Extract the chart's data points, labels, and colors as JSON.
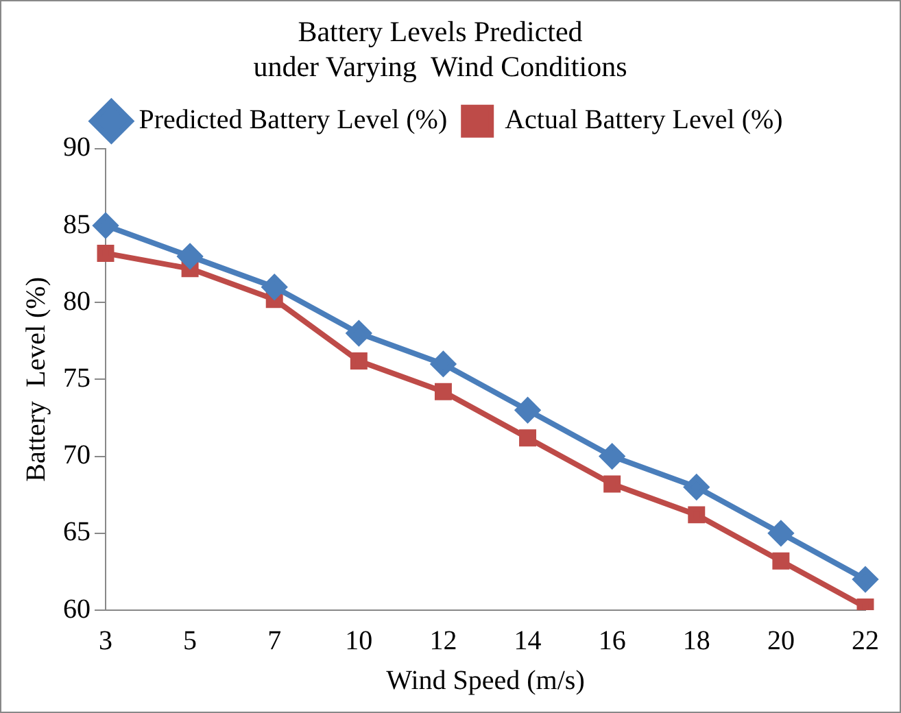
{
  "chart_data": {
    "type": "line",
    "title": [
      "Battery Levels Predicted",
      "under Varying  Wind Conditions"
    ],
    "xlabel": "Wind Speed (m/s)",
    "ylabel": "Battery  Level (%)",
    "categories": [
      "3",
      "5",
      "7",
      "10",
      "12",
      "14",
      "16",
      "18",
      "20",
      "22"
    ],
    "series": [
      {
        "name": "Predicted Battery Level (%)",
        "color": "#4a7ebb",
        "marker": "diamond",
        "values": [
          85,
          83,
          81,
          78,
          76,
          73,
          70,
          68,
          65,
          62
        ]
      },
      {
        "name": "Actual Battery Level (%)",
        "color": "#be4b48",
        "marker": "square",
        "values": [
          83.2,
          82.2,
          80.2,
          76.2,
          74.2,
          71.2,
          68.2,
          66.2,
          63.2,
          60.2
        ]
      }
    ],
    "ylim": [
      60,
      90
    ],
    "yticks": [
      60,
      65,
      70,
      75,
      80,
      85,
      90
    ],
    "grid": false,
    "legend": "top",
    "line_style": "solid"
  }
}
